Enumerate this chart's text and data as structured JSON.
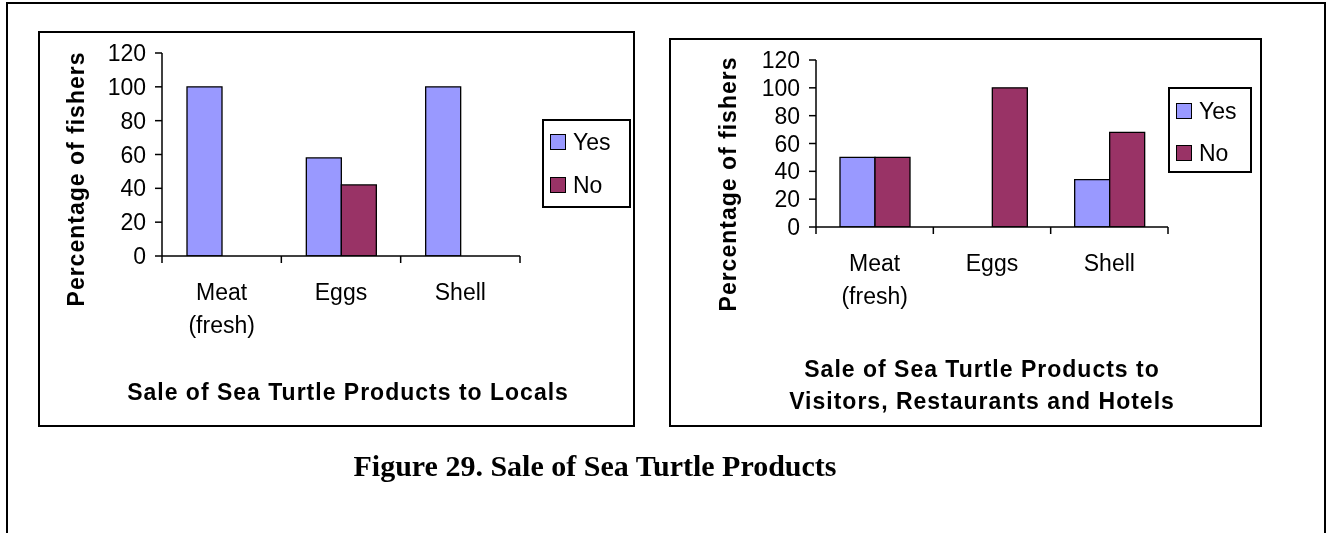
{
  "chart_data": [
    {
      "type": "bar",
      "title": "Sale of Sea Turtle Products to Locals",
      "ylabel": "Percentage of fishers",
      "categories": [
        "Meat (fresh)",
        "Eggs",
        "Shell"
      ],
      "series": [
        {
          "name": "Yes",
          "color": "#9999ff",
          "values": [
            100,
            58,
            100
          ]
        },
        {
          "name": "No",
          "color": "#993366",
          "values": [
            null,
            42,
            null
          ]
        }
      ],
      "ylim": [
        0,
        120
      ],
      "yticks": [
        0,
        20,
        40,
        60,
        80,
        100,
        120
      ],
      "legend": "right",
      "annotations": [
        "Figure 29. Sale of Sea Turtle Products"
      ]
    },
    {
      "type": "bar",
      "title": "Sale of Sea Turtle Products to Visitors, Restaurants and Hotels",
      "ylabel": "Percentage of fishers",
      "categories": [
        "Meat (fresh)",
        "Eggs",
        "Shell"
      ],
      "series": [
        {
          "name": "Yes",
          "color": "#9999ff",
          "values": [
            50,
            null,
            34
          ]
        },
        {
          "name": "No",
          "color": "#993366",
          "values": [
            50,
            100,
            68
          ]
        }
      ],
      "ylim": [
        0,
        120
      ],
      "yticks": [
        0,
        20,
        40,
        60,
        80,
        100,
        120
      ],
      "legend": "right"
    }
  ]
}
